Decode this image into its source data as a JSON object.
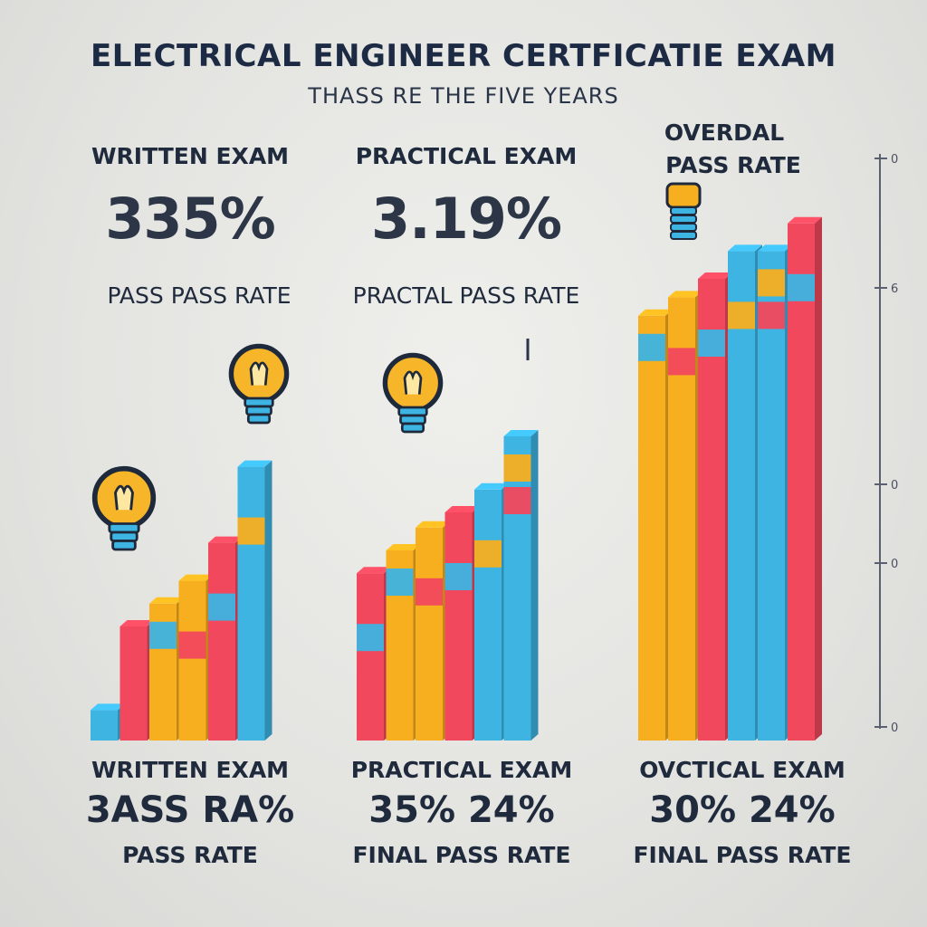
{
  "title": "ELECTRICAL ENGINEER CERTFICATIE EXAM",
  "subtitle": "THASS RE    THE FIVE   YEARS",
  "panels": [
    {
      "header": "WRITTEN EXAM",
      "big": "335%",
      "rate": "PASS PASS RATE",
      "foot_title": "WRITTEN EXAM",
      "foot_value": "3ASS RA%",
      "foot_rate": "PASS  RATE"
    },
    {
      "header": "PRACTICAL EXAM",
      "big": "3.19%",
      "rate": "PRACTAL PASS RATE",
      "foot_title": "PRACTICAL EXAM",
      "foot_value": "35% 24%",
      "foot_rate": "FINAL PASS RATE"
    },
    {
      "header_line1": "OVERDAL",
      "header_line2": "PASS RATE",
      "foot_title": "OVCTICAL EXAM",
      "foot_value": "30% 24%",
      "foot_rate": "FINAL PASS RATE"
    }
  ],
  "axis_labels": [
    "0",
    "6",
    "0",
    "0",
    "0"
  ],
  "colors": {
    "blue": "#3db4e2",
    "red": "#f2485d",
    "orange": "#f7ae1f"
  },
  "icons": [
    "lightbulb-icon",
    "lightbulb-icon",
    "lightbulb-icon"
  ],
  "chart_data": [
    {
      "type": "bar",
      "title": "WRITTEN EXAM",
      "series": [
        {
          "values": [
            8,
            30,
            36,
            42,
            52,
            72
          ]
        }
      ]
    },
    {
      "type": "bar",
      "title": "PRACTICAL EXAM",
      "series": [
        {
          "values": [
            44,
            50,
            56,
            60,
            66,
            80
          ]
        }
      ]
    },
    {
      "type": "bar",
      "title": "OVERDAL PASS RATE",
      "series": [
        {
          "values": [
            92,
            96,
            100,
            106,
            106,
            112
          ]
        }
      ]
    }
  ]
}
